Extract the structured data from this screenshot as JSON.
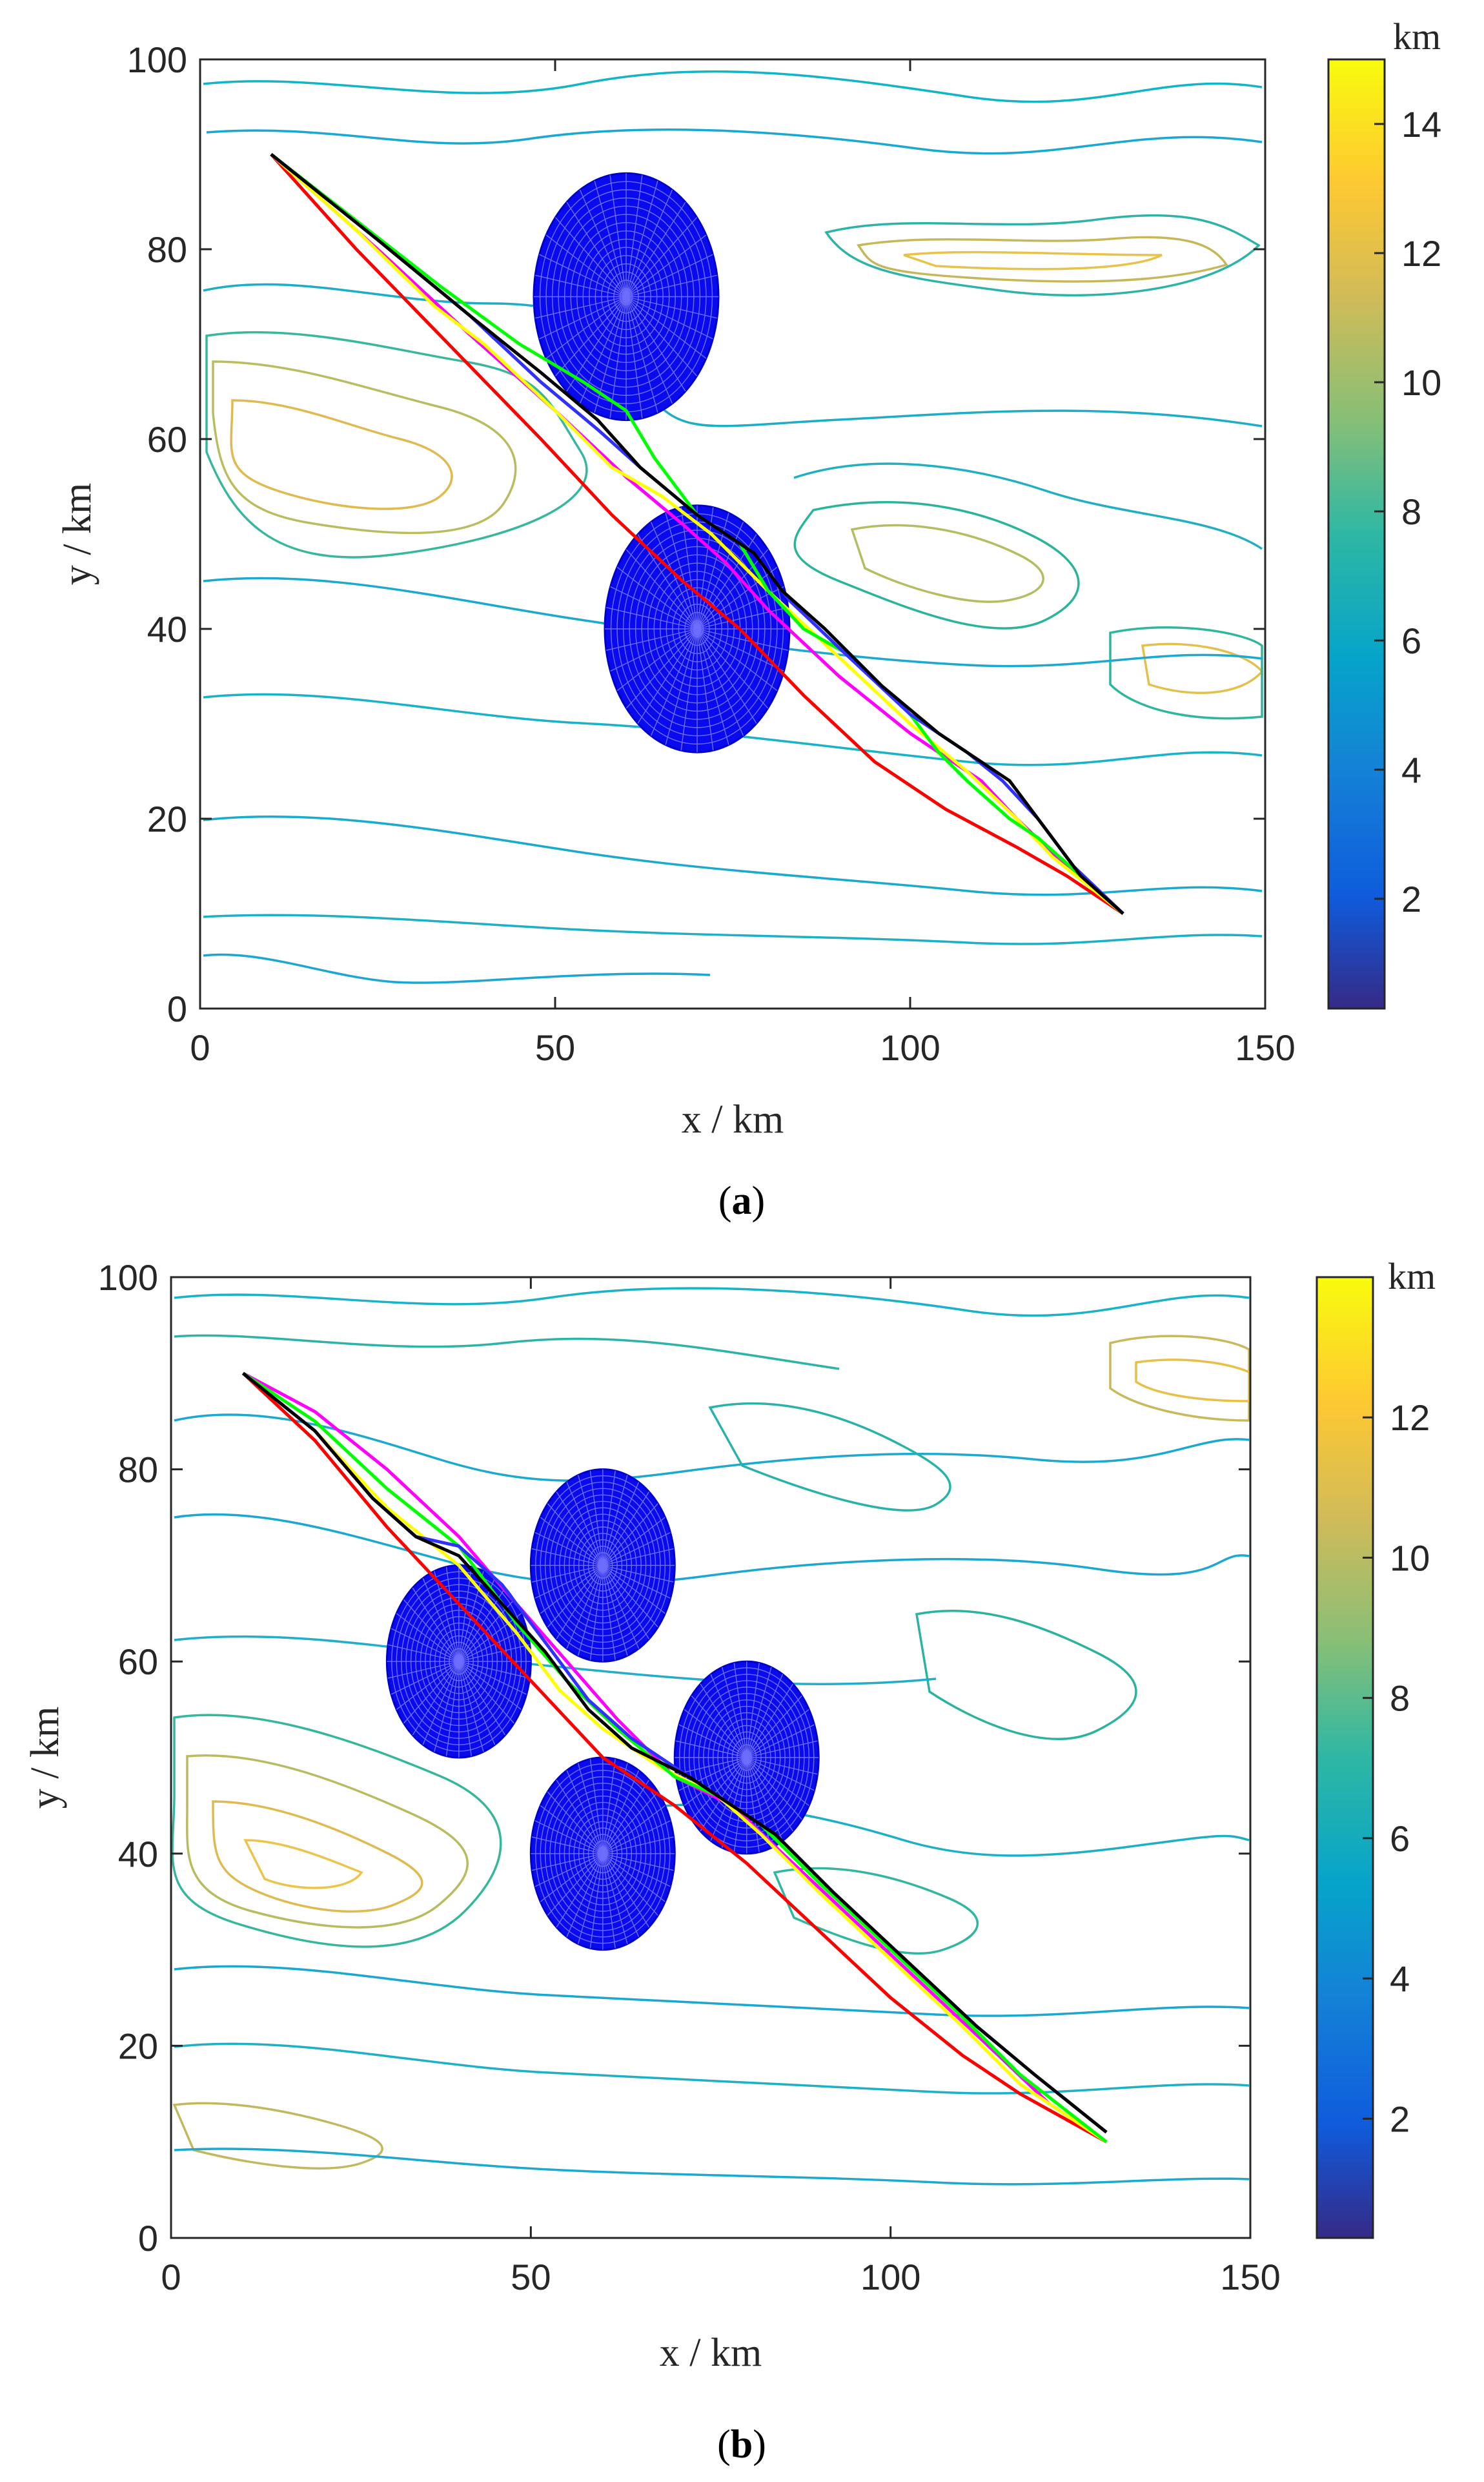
{
  "chart_data": [
    {
      "type": "line",
      "panel": "a",
      "caption": {
        "open": "(",
        "bold": "a",
        "close": ")"
      },
      "xlabel": "x / km",
      "ylabel": "y / km",
      "xlim": [
        0,
        150
      ],
      "ylim": [
        0,
        100
      ],
      "xticks": [
        0,
        50,
        100,
        150
      ],
      "yticks": [
        0,
        20,
        40,
        60,
        80,
        100
      ],
      "colorbar": {
        "unit": "km",
        "min": 0.3,
        "max": 15,
        "ticks": [
          2,
          4,
          6,
          8,
          10,
          12,
          14
        ]
      },
      "obstacles": [
        {
          "cx": 60,
          "cy": 75,
          "rx": 13,
          "ry": 13
        },
        {
          "cx": 70,
          "cy": 40,
          "rx": 13,
          "ry": 13
        }
      ],
      "series": [
        {
          "color": "#ff0000",
          "points": [
            [
              10,
              90
            ],
            [
              22,
              80
            ],
            [
              35,
              70
            ],
            [
              48,
              60
            ],
            [
              58,
              52
            ],
            [
              68,
              45
            ],
            [
              76,
              40
            ],
            [
              85,
              33
            ],
            [
              95,
              26
            ],
            [
              105,
              21
            ],
            [
              115,
              17
            ],
            [
              122,
              14
            ],
            [
              130,
              10
            ]
          ]
        },
        {
          "color": "#ff00ff",
          "points": [
            [
              10,
              90
            ],
            [
              25,
              80
            ],
            [
              38,
              71
            ],
            [
              50,
              63
            ],
            [
              60,
              56
            ],
            [
              68,
              51
            ],
            [
              74,
              47
            ],
            [
              80,
              42
            ],
            [
              90,
              35
            ],
            [
              100,
              29
            ],
            [
              106,
              26
            ],
            [
              110,
              24
            ],
            [
              115,
              20
            ],
            [
              122,
              15
            ],
            [
              130,
              10
            ]
          ]
        },
        {
          "color": "#ffff00",
          "points": [
            [
              10,
              90
            ],
            [
              22,
              82
            ],
            [
              33,
              74
            ],
            [
              40,
              70
            ],
            [
              50,
              63
            ],
            [
              58,
              57
            ],
            [
              65,
              54
            ],
            [
              72,
              50
            ],
            [
              80,
              44
            ],
            [
              90,
              37
            ],
            [
              100,
              30
            ],
            [
              108,
              25
            ],
            [
              115,
              20
            ],
            [
              120,
              16
            ],
            [
              130,
              10
            ]
          ]
        },
        {
          "color": "#00ff00",
          "points": [
            [
              10,
              90
            ],
            [
              22,
              83
            ],
            [
              34,
              76
            ],
            [
              45,
              70
            ],
            [
              54,
              66
            ],
            [
              60,
              63
            ],
            [
              64,
              58
            ],
            [
              70,
              52
            ],
            [
              76,
              49
            ],
            [
              80,
              44
            ],
            [
              85,
              40
            ],
            [
              92,
              37
            ],
            [
              100,
              31
            ],
            [
              104,
              27
            ],
            [
              108,
              24
            ],
            [
              114,
              20
            ],
            [
              118,
              18
            ],
            [
              124,
              14
            ],
            [
              130,
              10
            ]
          ]
        },
        {
          "color": "#3030ff",
          "points": [
            [
              10,
              90
            ],
            [
              25,
              81
            ],
            [
              38,
              73
            ],
            [
              48,
              66
            ],
            [
              56,
              61
            ],
            [
              62,
              57
            ],
            [
              70,
              52
            ],
            [
              78,
              48
            ],
            [
              83,
              43
            ],
            [
              90,
              38
            ],
            [
              100,
              31
            ],
            [
              108,
              27
            ],
            [
              113,
              24
            ],
            [
              118,
              20
            ],
            [
              123,
              15
            ],
            [
              130,
              10
            ]
          ]
        },
        {
          "color": "#000000",
          "points": [
            [
              10,
              90
            ],
            [
              25,
              81
            ],
            [
              38,
              73
            ],
            [
              48,
              67
            ],
            [
              56,
              62
            ],
            [
              62,
              57
            ],
            [
              70,
              52
            ],
            [
              78,
              48
            ],
            [
              82,
              44
            ],
            [
              88,
              40
            ],
            [
              96,
              34
            ],
            [
              104,
              29
            ],
            [
              110,
              26
            ],
            [
              114,
              24
            ],
            [
              118,
              20
            ],
            [
              124,
              14
            ],
            [
              130,
              10
            ]
          ]
        }
      ]
    },
    {
      "type": "line",
      "panel": "b",
      "caption": {
        "open": "(",
        "bold": "b",
        "close": ")"
      },
      "xlabel": "x / km",
      "ylabel": "y / km",
      "xlim": [
        0,
        150
      ],
      "ylim": [
        0,
        100
      ],
      "xticks": [
        0,
        50,
        100,
        150
      ],
      "yticks": [
        0,
        20,
        40,
        60,
        80,
        100
      ],
      "colorbar": {
        "unit": "km",
        "min": 0.3,
        "max": 14,
        "ticks": [
          2,
          4,
          6,
          8,
          10,
          12
        ]
      },
      "obstacles": [
        {
          "cx": 40,
          "cy": 60,
          "rx": 10,
          "ry": 10
        },
        {
          "cx": 60,
          "cy": 70,
          "rx": 10,
          "ry": 10
        },
        {
          "cx": 80,
          "cy": 50,
          "rx": 10,
          "ry": 10
        },
        {
          "cx": 60,
          "cy": 40,
          "rx": 10,
          "ry": 10
        }
      ],
      "series": [
        {
          "color": "#ff0000",
          "points": [
            [
              10,
              90
            ],
            [
              20,
              83
            ],
            [
              30,
              74
            ],
            [
              40,
              66
            ],
            [
              50,
              58
            ],
            [
              60,
              50
            ],
            [
              70,
              45
            ],
            [
              80,
              39
            ],
            [
              90,
              32
            ],
            [
              100,
              25
            ],
            [
              110,
              19
            ],
            [
              118,
              15
            ],
            [
              130,
              10
            ]
          ]
        },
        {
          "color": "#ff00ff",
          "points": [
            [
              10,
              90
            ],
            [
              20,
              86
            ],
            [
              30,
              80
            ],
            [
              40,
              73
            ],
            [
              48,
              66
            ],
            [
              55,
              60
            ],
            [
              62,
              54
            ],
            [
              70,
              48
            ],
            [
              78,
              45
            ],
            [
              85,
              40
            ],
            [
              95,
              33
            ],
            [
              105,
              26
            ],
            [
              115,
              19
            ],
            [
              122,
              14
            ],
            [
              130,
              10
            ]
          ]
        },
        {
          "color": "#ffff00",
          "points": [
            [
              10,
              90
            ],
            [
              20,
              84
            ],
            [
              30,
              76
            ],
            [
              40,
              70
            ],
            [
              48,
              63
            ],
            [
              54,
              57
            ],
            [
              60,
              53
            ],
            [
              68,
              49
            ],
            [
              76,
              46
            ],
            [
              82,
              42
            ],
            [
              90,
              36
            ],
            [
              100,
              29
            ],
            [
              110,
              22
            ],
            [
              118,
              16
            ],
            [
              130,
              10
            ]
          ]
        },
        {
          "color": "#00ff00",
          "points": [
            [
              10,
              90
            ],
            [
              20,
              85
            ],
            [
              30,
              78
            ],
            [
              40,
              72
            ],
            [
              48,
              64
            ],
            [
              55,
              58
            ],
            [
              62,
              53
            ],
            [
              70,
              48
            ],
            [
              76,
              46
            ],
            [
              82,
              43
            ],
            [
              90,
              37
            ],
            [
              100,
              30
            ],
            [
              110,
              23
            ],
            [
              118,
              17
            ],
            [
              130,
              10
            ]
          ]
        },
        {
          "color": "#3030ff",
          "points": [
            [
              10,
              90
            ],
            [
              20,
              84
            ],
            [
              28,
              77
            ],
            [
              34,
              73
            ],
            [
              40,
              72
            ],
            [
              46,
              68
            ],
            [
              52,
              62
            ],
            [
              58,
              56
            ],
            [
              64,
              52
            ],
            [
              72,
              48
            ],
            [
              78,
              45
            ],
            [
              84,
              42
            ],
            [
              92,
              36
            ],
            [
              102,
              29
            ],
            [
              112,
              22
            ],
            [
              120,
              17
            ],
            [
              130,
              11
            ]
          ]
        },
        {
          "color": "#000000",
          "points": [
            [
              10,
              90
            ],
            [
              20,
              84
            ],
            [
              28,
              77
            ],
            [
              34,
              73
            ],
            [
              40,
              71
            ],
            [
              46,
              66
            ],
            [
              52,
              61
            ],
            [
              58,
              55
            ],
            [
              64,
              51
            ],
            [
              72,
              48
            ],
            [
              78,
              45
            ],
            [
              84,
              42
            ],
            [
              92,
              36
            ],
            [
              102,
              29
            ],
            [
              112,
              22
            ],
            [
              120,
              17
            ],
            [
              130,
              11
            ]
          ]
        }
      ]
    }
  ]
}
